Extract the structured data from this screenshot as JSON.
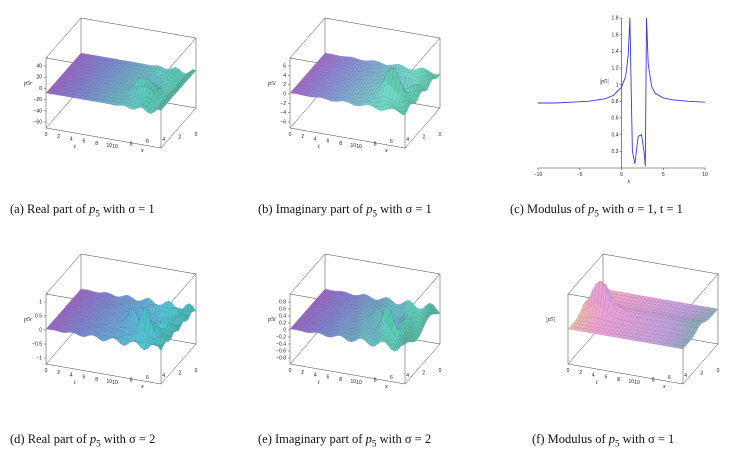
{
  "figure": {
    "panels": [
      {
        "id": "a",
        "kind": "surface",
        "caption_prefix": "(a)",
        "caption_text": "Real part of",
        "caption_math": "with σ = 1",
        "z_label": "p5r",
        "z_ticks": [
          "40",
          "20",
          "0",
          "−20",
          "−40",
          "−60"
        ],
        "t_ticks": [
          "0",
          "2",
          "4",
          "6",
          "8",
          "10"
        ],
        "x_ticks": [
          "10",
          "8",
          "6",
          "4",
          "2",
          "0"
        ],
        "t_label": "t",
        "x_label": "x",
        "palette": [
          "#c040b8",
          "#7e7fcf",
          "#5fd0c0",
          "#3a8a6a"
        ]
      },
      {
        "id": "b",
        "kind": "surface",
        "caption_prefix": "(b)",
        "caption_text": "Imaginary part of",
        "caption_math": "with σ = 1",
        "z_label": "p5i",
        "z_ticks": [
          "6",
          "4",
          "2",
          "0",
          "−2",
          "−4",
          "−6"
        ],
        "t_ticks": [
          "0",
          "2",
          "4",
          "6",
          "8",
          "10"
        ],
        "x_ticks": [
          "10",
          "8",
          "6",
          "4",
          "2",
          "0"
        ],
        "t_label": "t",
        "x_label": "x",
        "palette": [
          "#c040b8",
          "#8a88d8",
          "#6fe0c8",
          "#3a8a6a"
        ]
      },
      {
        "id": "c",
        "kind": "line",
        "caption_prefix": "(c)",
        "caption_text": "Modulus of",
        "caption_math": "with σ = 1, t = 1",
        "y_label": "|p5|",
        "x_label": "x"
      },
      {
        "id": "d",
        "kind": "surface",
        "caption_prefix": "(d)",
        "caption_text": "Real part of",
        "caption_math": "with σ = 2",
        "z_label": "p5r",
        "z_ticks": [
          "1",
          "0.5",
          "0",
          "−0.5",
          "−1"
        ],
        "t_ticks": [
          "0",
          "2",
          "4",
          "6",
          "8",
          "10"
        ],
        "x_ticks": [
          "10",
          "8",
          "6",
          "4",
          "2",
          "0"
        ],
        "t_label": "t",
        "x_label": "x",
        "palette": [
          "#c040b8",
          "#7e7fcf",
          "#4fc8d8",
          "#3a8a6a"
        ]
      },
      {
        "id": "e",
        "kind": "surface",
        "caption_prefix": "(e)",
        "caption_text": "Imaginary part of",
        "caption_math": "with σ = 2",
        "z_label": "p5i",
        "z_ticks": [
          "0.8",
          "0.6",
          "0.4",
          "0.2",
          "0",
          "−0.2",
          "−0.4",
          "−0.6",
          "−0.8"
        ],
        "t_ticks": [
          "0",
          "2",
          "4",
          "6",
          "8",
          "10"
        ],
        "x_ticks": [
          "10",
          "8",
          "6",
          "4",
          "2",
          "0"
        ],
        "t_label": "t",
        "x_label": "x",
        "palette": [
          "#c040b8",
          "#7e7fcf",
          "#5fd0c0",
          "#3a8a6a"
        ]
      },
      {
        "id": "f",
        "kind": "surface",
        "caption_prefix": "(f)",
        "caption_text": "Modulus of",
        "caption_math": "with σ = 1",
        "z_label": "|p5|",
        "z_ticks": [],
        "t_ticks": [
          "0",
          "2",
          "4",
          "6",
          "8",
          "10"
        ],
        "x_ticks": [
          "10",
          "8",
          "6",
          "4",
          "2",
          "0"
        ],
        "t_label": "t",
        "x_label": "x",
        "palette": [
          "#e8e070",
          "#f0a0d8",
          "#c0a0e0",
          "#40c080"
        ]
      }
    ]
  },
  "chart_data": {
    "type": "line",
    "xlabel": "x",
    "ylabel": "|p5|",
    "xlim": [
      -10,
      10
    ],
    "ylim": [
      0,
      1.8
    ],
    "x_ticks": [
      "−10",
      "−5",
      "0",
      "5",
      "10"
    ],
    "y_ticks": [
      "0.2",
      "0.4",
      "0.6",
      "0.8",
      "1",
      "1.2",
      "1.4",
      "1.6",
      "1.8"
    ],
    "x": [
      -10,
      -8,
      -6,
      -4,
      -2,
      -1,
      0,
      0.5,
      0.8,
      1.0,
      1.15,
      1.3,
      1.6,
      2.0,
      2.4,
      2.7,
      2.85,
      3.0,
      3.2,
      3.6,
      4.0,
      5,
      6,
      8,
      10
    ],
    "y": [
      0.78,
      0.78,
      0.79,
      0.8,
      0.83,
      0.87,
      0.97,
      1.1,
      1.35,
      1.8,
      1.0,
      0.2,
      0.05,
      0.38,
      0.4,
      0.2,
      0.02,
      1.8,
      1.25,
      0.98,
      0.9,
      0.84,
      0.82,
      0.8,
      0.79
    ],
    "color": "#3a3ad0"
  }
}
